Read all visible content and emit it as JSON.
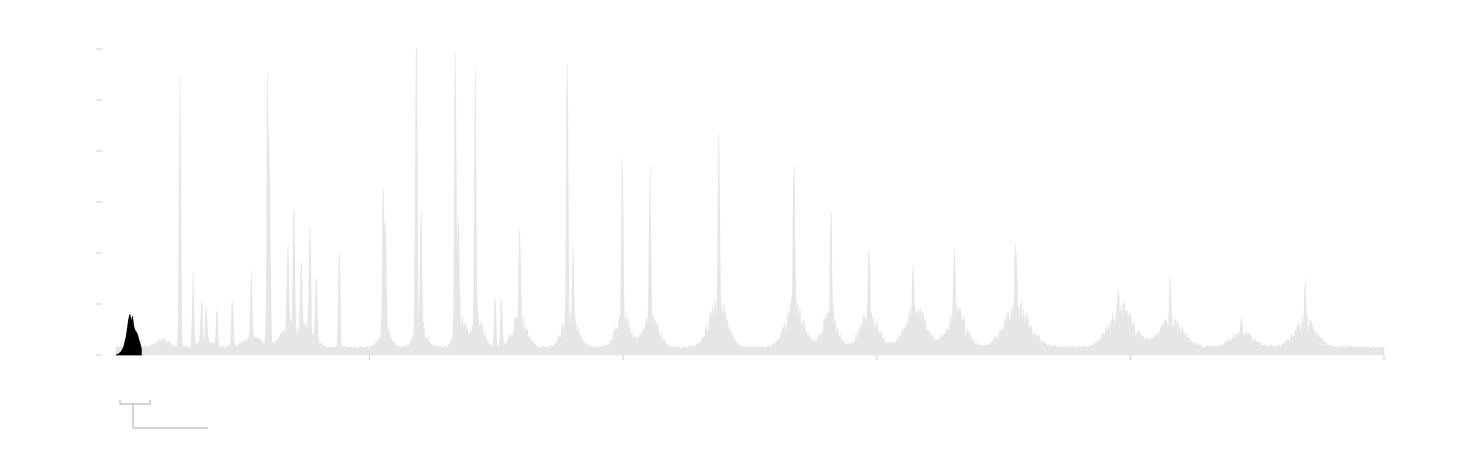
{
  "chart_data": {
    "type": "area",
    "title": "",
    "xlabel": "",
    "ylabel": "",
    "xlim": [
      0,
      1000
    ],
    "ylim": [
      0,
      600
    ],
    "grid": false,
    "y_ticks": [
      0,
      100,
      200,
      300,
      400,
      500,
      600
    ],
    "x_ticks": [
      200,
      400,
      600,
      800,
      1000
    ],
    "tick_labels_visible": false,
    "colors": {
      "background_series": "#e6e6e6",
      "highlight_series": "#000000",
      "ticks": "#cccccc",
      "bracket": "#aaaaaa"
    },
    "highlight_range": [
      0,
      20
    ],
    "series": [
      {
        "role": "full-trace",
        "baseline": 12,
        "noise": 6,
        "spikes": [
          {
            "x": 50.4,
            "y": 541
          },
          {
            "x": 60.8,
            "y": 130
          },
          {
            "x": 67.5,
            "y": 78
          },
          {
            "x": 71.0,
            "y": 75
          },
          {
            "x": 79.6,
            "y": 72
          },
          {
            "x": 91.7,
            "y": 100
          },
          {
            "x": 106.6,
            "y": 125
          },
          {
            "x": 119.6,
            "y": 478
          },
          {
            "x": 121.2,
            "y": 310
          },
          {
            "x": 135.6,
            "y": 160
          },
          {
            "x": 140.2,
            "y": 240
          },
          {
            "x": 146.1,
            "y": 140
          },
          {
            "x": 152.9,
            "y": 200
          },
          {
            "x": 158.0,
            "y": 120
          },
          {
            "x": 176.1,
            "y": 210
          },
          {
            "x": 210.9,
            "y": 280
          },
          {
            "x": 212.5,
            "y": 180
          },
          {
            "x": 236.8,
            "y": 565
          },
          {
            "x": 240.5,
            "y": 210
          },
          {
            "x": 267.6,
            "y": 565
          },
          {
            "x": 270.0,
            "y": 240
          },
          {
            "x": 283.3,
            "y": 470
          },
          {
            "x": 299.0,
            "y": 95
          },
          {
            "x": 304.0,
            "y": 95
          },
          {
            "x": 318.4,
            "y": 190
          },
          {
            "x": 355.9,
            "y": 485
          },
          {
            "x": 360.5,
            "y": 140
          },
          {
            "x": 399.3,
            "y": 290
          },
          {
            "x": 421.1,
            "y": 270
          },
          {
            "x": 475.4,
            "y": 335
          },
          {
            "x": 534.6,
            "y": 295
          },
          {
            "x": 563.9,
            "y": 205
          },
          {
            "x": 593.9,
            "y": 140
          },
          {
            "x": 628.6,
            "y": 100
          },
          {
            "x": 661.3,
            "y": 105
          },
          {
            "x": 709.6,
            "y": 135
          },
          {
            "x": 790.4,
            "y": 70
          },
          {
            "x": 831.4,
            "y": 85
          },
          {
            "x": 887.5,
            "y": 35
          },
          {
            "x": 937.9,
            "y": 75
          }
        ],
        "humps": [
          {
            "center": 36.6,
            "width": 8,
            "height": 12
          },
          {
            "center": 70.0,
            "width": 8,
            "height": 12
          },
          {
            "center": 108.0,
            "width": 10,
            "height": 18
          },
          {
            "center": 138.0,
            "width": 10,
            "height": 40
          },
          {
            "center": 152.0,
            "width": 8,
            "height": 30
          },
          {
            "center": 212.0,
            "width": 6,
            "height": 35
          },
          {
            "center": 240.0,
            "width": 6,
            "height": 45
          },
          {
            "center": 272.0,
            "width": 6,
            "height": 50
          },
          {
            "center": 286.0,
            "width": 6,
            "height": 50
          },
          {
            "center": 318.0,
            "width": 8,
            "height": 50
          },
          {
            "center": 358.0,
            "width": 8,
            "height": 60
          },
          {
            "center": 400.0,
            "width": 8,
            "height": 55
          },
          {
            "center": 422.0,
            "width": 8,
            "height": 55
          },
          {
            "center": 475.0,
            "width": 10,
            "height": 75
          },
          {
            "center": 535.0,
            "width": 10,
            "height": 70
          },
          {
            "center": 563.0,
            "width": 8,
            "height": 60
          },
          {
            "center": 594.0,
            "width": 10,
            "height": 55
          },
          {
            "center": 631.0,
            "width": 12,
            "height": 65
          },
          {
            "center": 663.0,
            "width": 10,
            "height": 65
          },
          {
            "center": 711.0,
            "width": 14,
            "height": 70
          },
          {
            "center": 793.0,
            "width": 14,
            "height": 65
          },
          {
            "center": 832.0,
            "width": 14,
            "height": 45
          },
          {
            "center": 888.0,
            "width": 12,
            "height": 25
          },
          {
            "center": 938.0,
            "width": 12,
            "height": 45
          }
        ]
      },
      {
        "role": "highlighted-segment",
        "x_range": [
          0,
          20
        ],
        "points": [
          [
            0,
            0
          ],
          [
            2,
            2
          ],
          [
            4,
            6
          ],
          [
            6,
            15
          ],
          [
            8,
            35
          ],
          [
            9,
            52
          ],
          [
            10,
            70
          ],
          [
            11,
            80
          ],
          [
            12,
            64
          ],
          [
            13,
            76
          ],
          [
            14,
            56
          ],
          [
            15,
            48
          ],
          [
            16,
            45
          ],
          [
            17,
            40
          ],
          [
            18,
            30
          ],
          [
            19,
            22
          ],
          [
            20,
            12
          ]
        ]
      }
    ]
  }
}
